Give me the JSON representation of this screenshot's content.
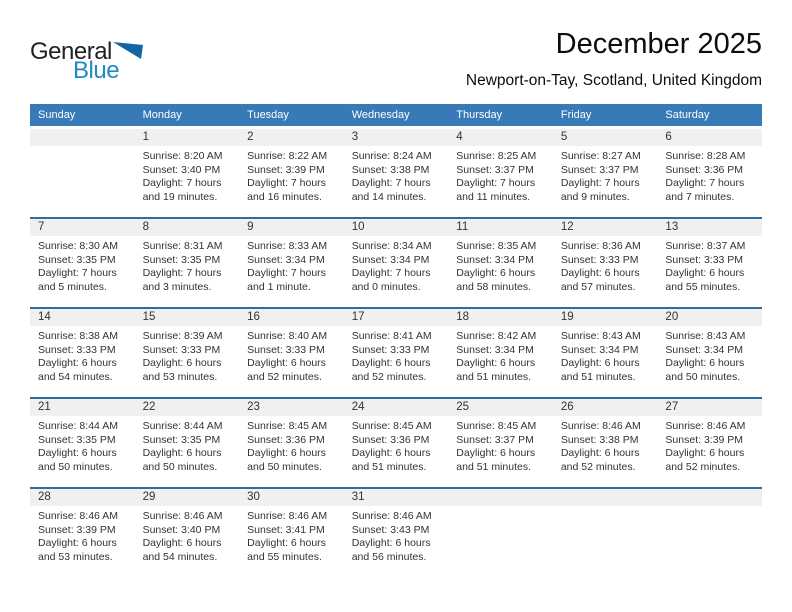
{
  "logo": {
    "text_black": "General",
    "text_blue": "Blue"
  },
  "header": {
    "title": "December 2025",
    "subtitle": "Newport-on-Tay, Scotland, United Kingdom"
  },
  "weekday_headers": [
    "Sunday",
    "Monday",
    "Tuesday",
    "Wednesday",
    "Thursday",
    "Friday",
    "Saturday"
  ],
  "field_labels": {
    "sunrise": "Sunrise:",
    "sunset": "Sunset:",
    "daylight": "Daylight:"
  },
  "colors": {
    "header_bg": "#377ab7",
    "separator": "#2e6da4",
    "band_bg": "#f0f0f0",
    "logo_blue": "#1e8bc3",
    "logo_triangle": "#1266a5"
  },
  "weeks": [
    [
      null,
      {
        "day": "1",
        "sunrise": "8:20 AM",
        "sunset": "3:40 PM",
        "daylight": "7 hours and 19 minutes."
      },
      {
        "day": "2",
        "sunrise": "8:22 AM",
        "sunset": "3:39 PM",
        "daylight": "7 hours and 16 minutes."
      },
      {
        "day": "3",
        "sunrise": "8:24 AM",
        "sunset": "3:38 PM",
        "daylight": "7 hours and 14 minutes."
      },
      {
        "day": "4",
        "sunrise": "8:25 AM",
        "sunset": "3:37 PM",
        "daylight": "7 hours and 11 minutes."
      },
      {
        "day": "5",
        "sunrise": "8:27 AM",
        "sunset": "3:37 PM",
        "daylight": "7 hours and 9 minutes."
      },
      {
        "day": "6",
        "sunrise": "8:28 AM",
        "sunset": "3:36 PM",
        "daylight": "7 hours and 7 minutes."
      }
    ],
    [
      {
        "day": "7",
        "sunrise": "8:30 AM",
        "sunset": "3:35 PM",
        "daylight": "7 hours and 5 minutes."
      },
      {
        "day": "8",
        "sunrise": "8:31 AM",
        "sunset": "3:35 PM",
        "daylight": "7 hours and 3 minutes."
      },
      {
        "day": "9",
        "sunrise": "8:33 AM",
        "sunset": "3:34 PM",
        "daylight": "7 hours and 1 minute."
      },
      {
        "day": "10",
        "sunrise": "8:34 AM",
        "sunset": "3:34 PM",
        "daylight": "7 hours and 0 minutes."
      },
      {
        "day": "11",
        "sunrise": "8:35 AM",
        "sunset": "3:34 PM",
        "daylight": "6 hours and 58 minutes."
      },
      {
        "day": "12",
        "sunrise": "8:36 AM",
        "sunset": "3:33 PM",
        "daylight": "6 hours and 57 minutes."
      },
      {
        "day": "13",
        "sunrise": "8:37 AM",
        "sunset": "3:33 PM",
        "daylight": "6 hours and 55 minutes."
      }
    ],
    [
      {
        "day": "14",
        "sunrise": "8:38 AM",
        "sunset": "3:33 PM",
        "daylight": "6 hours and 54 minutes."
      },
      {
        "day": "15",
        "sunrise": "8:39 AM",
        "sunset": "3:33 PM",
        "daylight": "6 hours and 53 minutes."
      },
      {
        "day": "16",
        "sunrise": "8:40 AM",
        "sunset": "3:33 PM",
        "daylight": "6 hours and 52 minutes."
      },
      {
        "day": "17",
        "sunrise": "8:41 AM",
        "sunset": "3:33 PM",
        "daylight": "6 hours and 52 minutes."
      },
      {
        "day": "18",
        "sunrise": "8:42 AM",
        "sunset": "3:34 PM",
        "daylight": "6 hours and 51 minutes."
      },
      {
        "day": "19",
        "sunrise": "8:43 AM",
        "sunset": "3:34 PM",
        "daylight": "6 hours and 51 minutes."
      },
      {
        "day": "20",
        "sunrise": "8:43 AM",
        "sunset": "3:34 PM",
        "daylight": "6 hours and 50 minutes."
      }
    ],
    [
      {
        "day": "21",
        "sunrise": "8:44 AM",
        "sunset": "3:35 PM",
        "daylight": "6 hours and 50 minutes."
      },
      {
        "day": "22",
        "sunrise": "8:44 AM",
        "sunset": "3:35 PM",
        "daylight": "6 hours and 50 minutes."
      },
      {
        "day": "23",
        "sunrise": "8:45 AM",
        "sunset": "3:36 PM",
        "daylight": "6 hours and 50 minutes."
      },
      {
        "day": "24",
        "sunrise": "8:45 AM",
        "sunset": "3:36 PM",
        "daylight": "6 hours and 51 minutes."
      },
      {
        "day": "25",
        "sunrise": "8:45 AM",
        "sunset": "3:37 PM",
        "daylight": "6 hours and 51 minutes."
      },
      {
        "day": "26",
        "sunrise": "8:46 AM",
        "sunset": "3:38 PM",
        "daylight": "6 hours and 52 minutes."
      },
      {
        "day": "27",
        "sunrise": "8:46 AM",
        "sunset": "3:39 PM",
        "daylight": "6 hours and 52 minutes."
      }
    ],
    [
      {
        "day": "28",
        "sunrise": "8:46 AM",
        "sunset": "3:39 PM",
        "daylight": "6 hours and 53 minutes."
      },
      {
        "day": "29",
        "sunrise": "8:46 AM",
        "sunset": "3:40 PM",
        "daylight": "6 hours and 54 minutes."
      },
      {
        "day": "30",
        "sunrise": "8:46 AM",
        "sunset": "3:41 PM",
        "daylight": "6 hours and 55 minutes."
      },
      {
        "day": "31",
        "sunrise": "8:46 AM",
        "sunset": "3:43 PM",
        "daylight": "6 hours and 56 minutes."
      },
      null,
      null,
      null
    ]
  ]
}
